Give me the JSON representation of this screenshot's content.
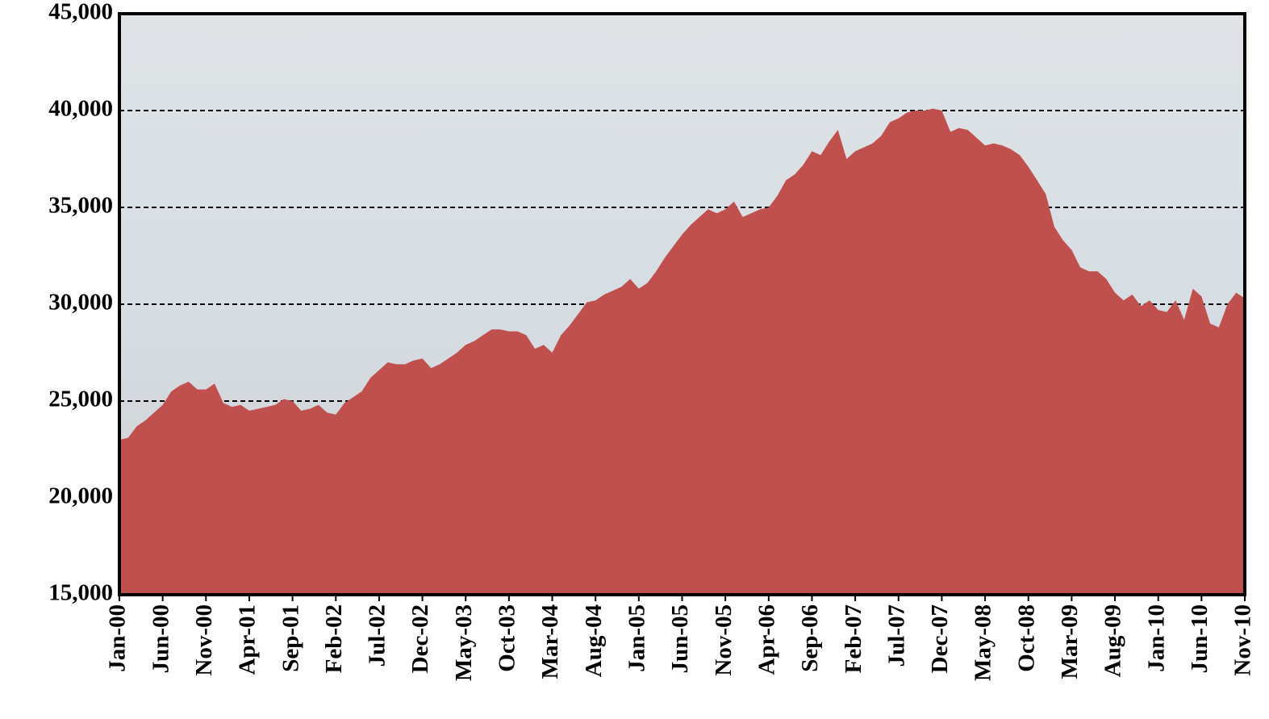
{
  "chart_data": {
    "type": "area",
    "color": "#c0504d",
    "grid": true,
    "categories": [
      "Jan-00",
      null,
      null,
      null,
      null,
      "Jun-00",
      null,
      null,
      null,
      null,
      "Nov-00",
      null,
      null,
      null,
      null,
      "Apr-01",
      null,
      null,
      null,
      null,
      "Sep-01",
      null,
      null,
      null,
      null,
      "Feb-02",
      null,
      null,
      null,
      null,
      "Jul-02",
      null,
      null,
      null,
      null,
      "Dec-02",
      null,
      null,
      null,
      null,
      "May-03",
      null,
      null,
      null,
      null,
      "Oct-03",
      null,
      null,
      null,
      null,
      "Mar-04",
      null,
      null,
      null,
      null,
      "Aug-04",
      null,
      null,
      null,
      null,
      "Jan-05",
      null,
      null,
      null,
      null,
      "Jun-05",
      null,
      null,
      null,
      null,
      "Nov-05",
      null,
      null,
      null,
      null,
      "Apr-06",
      null,
      null,
      null,
      null,
      "Sep-06",
      null,
      null,
      null,
      null,
      "Feb-07",
      null,
      null,
      null,
      null,
      "Jul-07",
      null,
      null,
      null,
      null,
      "Dec-07",
      null,
      null,
      null,
      null,
      "May-08",
      null,
      null,
      null,
      null,
      "Oct-08",
      null,
      null,
      null,
      null,
      "Mar-09",
      null,
      null,
      null,
      null,
      "Aug-09",
      null,
      null,
      null,
      null,
      "Jan-10",
      null,
      null,
      null,
      null,
      "Jun-10",
      null,
      null,
      null,
      null,
      "Nov-10"
    ],
    "values": [
      23000,
      23100,
      23700,
      24000,
      24400,
      24800,
      25500,
      25800,
      26000,
      25600,
      25600,
      25900,
      24900,
      24700,
      24800,
      24500,
      24600,
      24700,
      24800,
      25100,
      25000,
      24500,
      24600,
      24800,
      24400,
      24300,
      24900,
      25200,
      25500,
      26200,
      26600,
      27000,
      26900,
      26900,
      27100,
      27200,
      26700,
      26900,
      27200,
      27500,
      27900,
      28100,
      28400,
      28700,
      28700,
      28600,
      28600,
      28400,
      27700,
      27900,
      27500,
      28400,
      28900,
      29500,
      30100,
      30200,
      30500,
      30700,
      30900,
      31300,
      30800,
      31100,
      31700,
      32400,
      33000,
      33600,
      34100,
      34500,
      34900,
      34700,
      34900,
      35300,
      34500,
      34700,
      34900,
      35000,
      35600,
      36400,
      36700,
      37200,
      37900,
      37700,
      38400,
      39000,
      37500,
      37900,
      38100,
      38300,
      38700,
      39400,
      39600,
      39900,
      40000,
      40000,
      40100,
      40000,
      38900,
      39100,
      39000,
      38600,
      38200,
      38300,
      38200,
      38000,
      37700,
      37100,
      36400,
      35700,
      34000,
      33300,
      32800,
      31900,
      31700,
      31700,
      31300,
      30600,
      30200,
      30500,
      29900,
      30200,
      29700,
      29600,
      30200,
      29200,
      30800,
      30400,
      29000,
      28800,
      30000,
      30600,
      30300
    ],
    "ylim": [
      15000,
      45000
    ],
    "yticks": [
      {
        "value": 15000,
        "label": "15,000"
      },
      {
        "value": 20000,
        "label": "20,000"
      },
      {
        "value": 25000,
        "label": "25,000"
      },
      {
        "value": 30000,
        "label": "30,000"
      },
      {
        "value": 35000,
        "label": "35,000"
      },
      {
        "value": 40000,
        "label": "40,000"
      },
      {
        "value": 45000,
        "label": "45,000"
      }
    ]
  }
}
